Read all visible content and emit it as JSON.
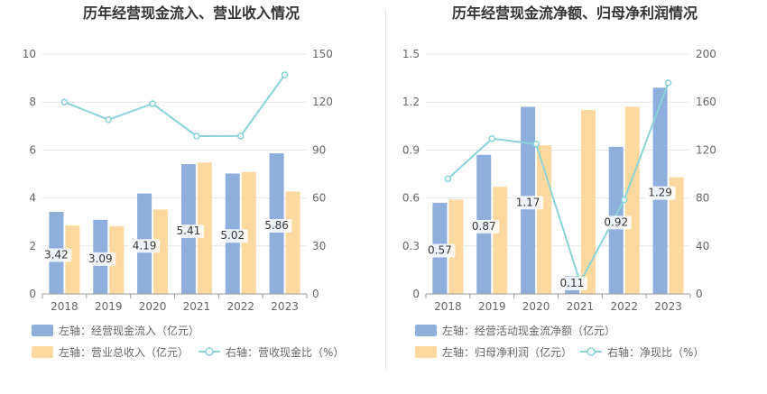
{
  "chart_data": [
    {
      "type": "bar",
      "title": "历年经营现金流入、营业收入情况",
      "categories": [
        "2018",
        "2019",
        "2020",
        "2021",
        "2022",
        "2023"
      ],
      "y_left": {
        "ylim": [
          0,
          10
        ],
        "ticks": [
          "0",
          "2",
          "4",
          "6",
          "8",
          "10"
        ]
      },
      "y_right": {
        "ylim": [
          0,
          150
        ],
        "ticks": [
          "0",
          "30",
          "60",
          "90",
          "120",
          "150"
        ]
      },
      "series": [
        {
          "name": "左轴：经营现金流入（亿元）",
          "type": "bar",
          "axis": "left",
          "color": "#8eaedc",
          "values": [
            3.42,
            3.09,
            4.19,
            5.41,
            5.02,
            5.86
          ],
          "labels": [
            "3.42",
            "3.09",
            "4.19",
            "5.41",
            "5.02",
            "5.86"
          ]
        },
        {
          "name": "左轴：营业总收入（亿元）",
          "type": "bar",
          "axis": "left",
          "color": "#fdd9a0",
          "values": [
            2.85,
            2.82,
            3.52,
            5.48,
            5.08,
            4.27
          ]
        },
        {
          "name": "右轴：营收现金比（%）",
          "type": "line",
          "axis": "right",
          "color": "#88d3d8",
          "values": [
            120.0,
            109.0,
            119.0,
            98.7,
            98.8,
            137.0
          ]
        }
      ],
      "grid": true,
      "legend": "bottom"
    },
    {
      "type": "bar",
      "title": "历年经营现金流净额、归母净利润情况",
      "categories": [
        "2018",
        "2019",
        "2020",
        "2021",
        "2022",
        "2023"
      ],
      "y_left": {
        "ylim": [
          0,
          1.5
        ],
        "ticks": [
          "0",
          "0.3",
          "0.6",
          "0.9",
          "1.2",
          "1.5"
        ]
      },
      "y_right": {
        "ylim": [
          0,
          200
        ],
        "ticks": [
          "0",
          "40",
          "80",
          "120",
          "160",
          "200"
        ]
      },
      "series": [
        {
          "name": "左轴：经营活动现金流净额（亿元）",
          "type": "bar",
          "axis": "left",
          "color": "#8eaedc",
          "values": [
            0.57,
            0.87,
            1.17,
            0.11,
            0.92,
            1.29
          ],
          "labels": [
            "0.57",
            "0.87",
            "1.17",
            "0.11",
            "0.92",
            "1.29"
          ]
        },
        {
          "name": "左轴：归母净利润（亿元）",
          "type": "bar",
          "axis": "left",
          "color": "#fdd9a0",
          "values": [
            0.59,
            0.67,
            0.93,
            1.15,
            1.17,
            0.73
          ]
        },
        {
          "name": "右轴：净现比（%）",
          "type": "line",
          "axis": "right",
          "color": "#88d3d8",
          "values": [
            96.0,
            129.5,
            125.0,
            9.5,
            78.5,
            176.0
          ]
        }
      ],
      "grid": true,
      "legend": "bottom"
    }
  ]
}
